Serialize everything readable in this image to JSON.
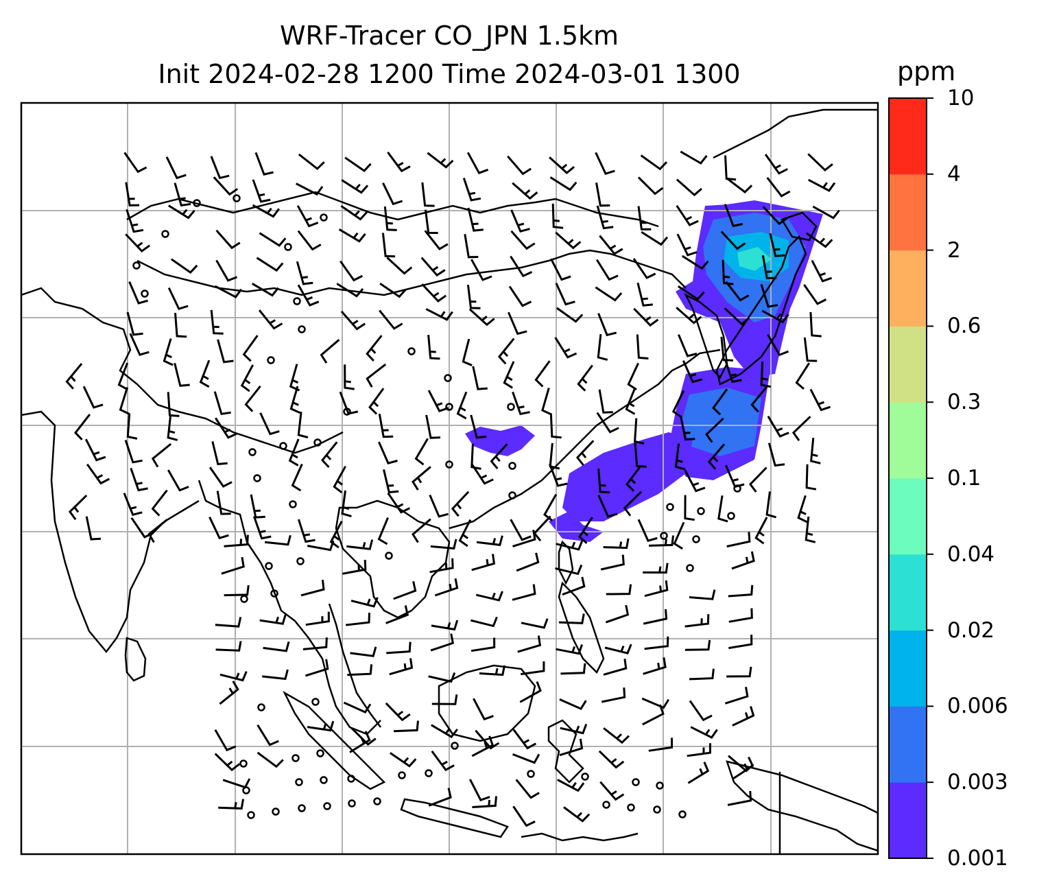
{
  "title": {
    "line1": "WRF-Tracer CO_JPN 1.5km",
    "line2": "Init 2024-02-28 1200 Time 2024-03-01 1300"
  },
  "colorbar": {
    "unit": "ppm",
    "levels": [
      "0.001",
      "0.003",
      "0.006",
      "0.02",
      "0.04",
      "0.1",
      "0.3",
      "0.6",
      "2",
      "4",
      "10"
    ],
    "colors": [
      "#5b2bff",
      "#3173f2",
      "#00b3ea",
      "#2de0d4",
      "#6cfcbe",
      "#a0fb99",
      "#d0e085",
      "#ffb05f",
      "#ff7340",
      "#ff2a1a"
    ]
  },
  "map": {
    "grid": true,
    "features": [
      "coastlines",
      "country-borders",
      "wind-barbs",
      "co-tracer-filled-contours"
    ],
    "colors": {
      "land-line": "#000000",
      "grid": "#b0b0b0",
      "barb": "#000000"
    }
  }
}
